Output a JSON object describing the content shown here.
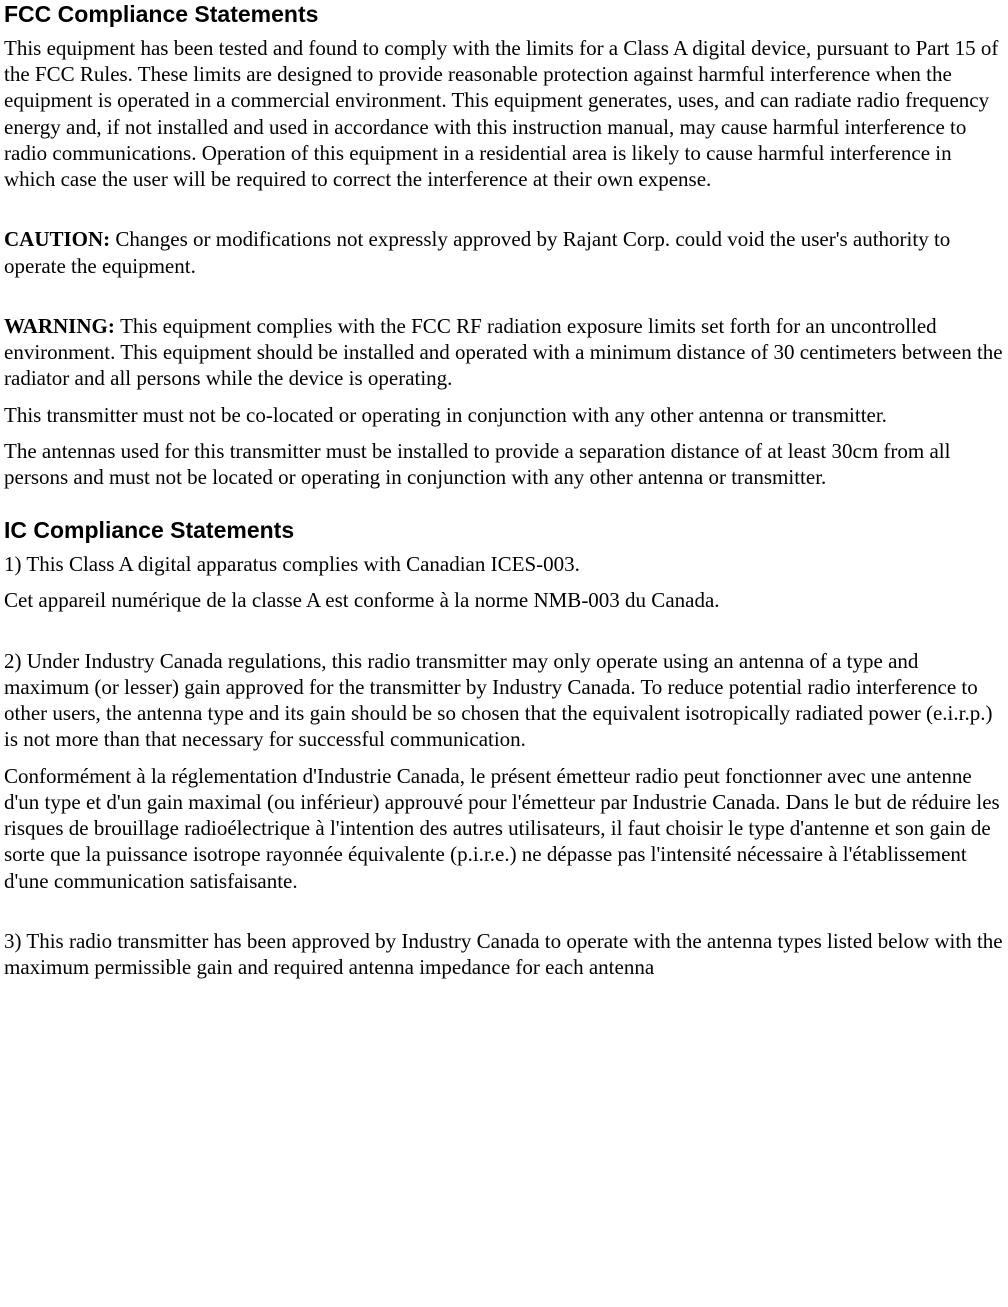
{
  "fcc": {
    "heading": "FCC Compliance Statements",
    "p1": "This equipment has been tested and found to comply with the limits for a Class A digital device, pursuant to Part 15 of the FCC Rules.  These limits are designed to provide reasonable protection against harmful interference when the equipment is operated in a commercial environment.  This equipment generates, uses, and can radiate radio frequency energy and, if not installed and used in accordance with this instruction manual, may cause harmful interference to radio communications.  Operation of this equipment in a residential area is likely to cause harmful interference in which case the user will be required to correct the interference at their own expense.",
    "caution_label": "CAUTION: ",
    "caution_body": "Changes or modifications not expressly approved by Rajant Corp. could void the user's authority to operate the equipment.",
    "warning_label": "WARNING: ",
    "warning_body": "This equipment complies with the FCC RF radiation exposure limits set forth for an uncontrolled environment. This equipment should be installed and operated with a minimum distance of 30 centimeters between the radiator and all persons while the device is operating.",
    "p4": "This transmitter must not be co-located or operating in conjunction with any other antenna or transmitter.",
    "p5": "The antennas used for this transmitter must be installed to provide a separation distance of at least 30cm from all persons and must not be located or operating in conjunction with any other antenna or transmitter."
  },
  "ic": {
    "heading": "IC Compliance Statements",
    "p1": "1) This Class A digital apparatus complies with Canadian ICES-003.",
    "p2": "Cet appareil numérique de la classe A est conforme à la norme NMB-003 du Canada.",
    "p3": "2) Under Industry Canada regulations, this radio transmitter may only operate using an antenna of a type and maximum (or lesser) gain approved for the transmitter by Industry Canada. To reduce potential radio interference to other users, the antenna type and its gain should be so chosen that the equivalent isotropically radiated power (e.i.r.p.) is not more than that necessary for successful communication.",
    "p4": "Conformément à la réglementation d'Industrie Canada, le présent émetteur radio peut fonctionner avec une antenne d'un type et d'un gain maximal (ou inférieur) approuvé pour l'émetteur par Industrie Canada. Dans le but de réduire les risques de brouillage radioélectrique à l'intention des autres utilisateurs, il faut choisir le type d'antenne et son gain de sorte que la puissance isotrope rayonnée équivalente (p.i.r.e.) ne dépasse pas l'intensité nécessaire à l'établissement d'une communication satisfaisante.",
    "p5": "3) This radio transmitter has been approved by Industry Canada to operate with the antenna types listed below with the maximum permissible gain and required antenna impedance for each antenna"
  }
}
